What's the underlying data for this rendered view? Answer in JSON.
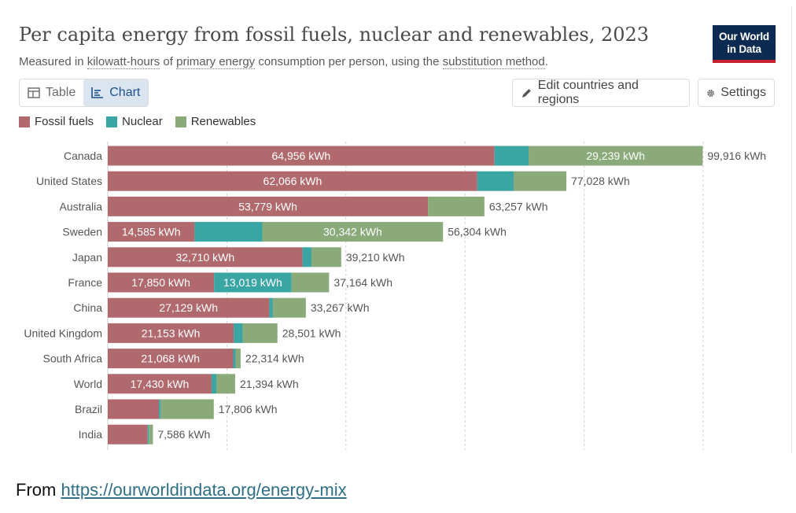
{
  "header": {
    "title": "Per capita energy from fossil fuels, nuclear and renewables, 2023",
    "subtitle_prefix": "Measured in ",
    "subtitle_link1": "kilowatt-hours",
    "subtitle_mid1": " of ",
    "subtitle_link2": "primary energy",
    "subtitle_mid2": " consumption per person, using the ",
    "subtitle_link3": "substitution method",
    "subtitle_suffix": "."
  },
  "logo": {
    "line1": "Our World",
    "line2": "in Data"
  },
  "tabs": [
    {
      "label": "Table",
      "icon": "table-icon",
      "active": false
    },
    {
      "label": "Chart",
      "icon": "chart-icon",
      "active": true
    }
  ],
  "toolbar": {
    "edit_label": "Edit countries and regions",
    "settings_label": "Settings"
  },
  "colors": {
    "fossil": "#b06a6e",
    "nuclear": "#3aa6a4",
    "renewables": "#8aaa7a"
  },
  "chart_data": {
    "type": "bar",
    "orientation": "horizontal",
    "stacked": true,
    "unit": "kWh",
    "xlim": [
      0,
      100000
    ],
    "grid": true,
    "legend_position": "top-left",
    "categories": [
      "Canada",
      "United States",
      "Australia",
      "Sweden",
      "Japan",
      "France",
      "China",
      "United Kingdom",
      "South Africa",
      "World",
      "Brazil",
      "India"
    ],
    "series": [
      {
        "name": "Fossil fuels",
        "values": [
          64956,
          62066,
          53779,
          14585,
          32710,
          17850,
          27129,
          21153,
          21068,
          17430,
          8600,
          6700
        ]
      },
      {
        "name": "Nuclear",
        "values": [
          5721,
          6100,
          0,
          11377,
          1500,
          13019,
          600,
          1500,
          400,
          800,
          300,
          200
        ]
      },
      {
        "name": "Renewables",
        "values": [
          29239,
          8862,
          9478,
          30342,
          5000,
          6295,
          5538,
          5848,
          846,
          3164,
          8906,
          686
        ]
      }
    ],
    "segment_labels": [
      [
        "64,956 kWh",
        "",
        "29,239 kWh"
      ],
      [
        "62,066 kWh",
        "",
        ""
      ],
      [
        "53,779 kWh",
        "",
        ""
      ],
      [
        "14,585 kWh",
        "",
        "30,342 kWh"
      ],
      [
        "32,710 kWh",
        "",
        ""
      ],
      [
        "17,850 kWh",
        "13,019 kWh",
        ""
      ],
      [
        "27,129 kWh",
        "",
        ""
      ],
      [
        "21,153 kWh",
        "",
        ""
      ],
      [
        "21,068 kWh",
        "",
        ""
      ],
      [
        "17,430 kWh",
        "",
        ""
      ],
      [
        "",
        "",
        ""
      ],
      [
        "",
        "",
        ""
      ]
    ],
    "totals": [
      99916,
      77028,
      63257,
      56304,
      39210,
      37164,
      33267,
      28501,
      22314,
      21394,
      17806,
      7586
    ],
    "total_labels": [
      "99,916 kWh",
      "77,028 kWh",
      "63,257 kWh",
      "56,304 kWh",
      "39,210 kWh",
      "37,164 kWh",
      "33,267 kWh",
      "28,501 kWh",
      "22,314 kWh",
      "21,394 kWh",
      "17,806 kWh",
      "7,586 kWh"
    ]
  },
  "source": {
    "prefix": "From ",
    "link": "https://ourworldindata.org/energy-mix"
  }
}
